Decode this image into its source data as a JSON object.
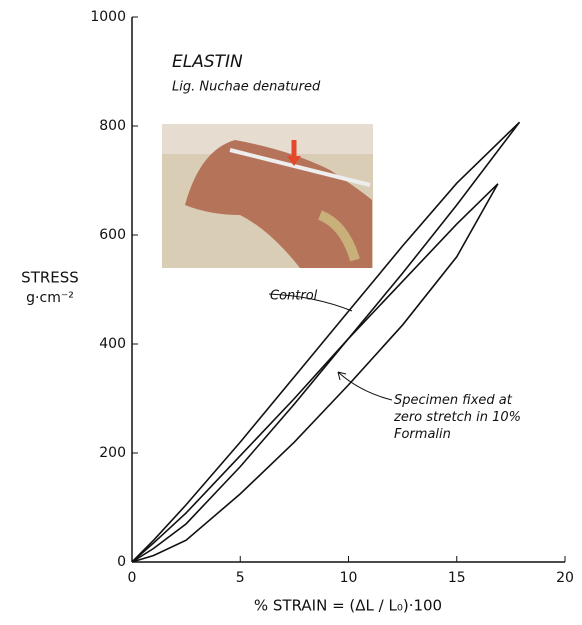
{
  "chart_data": {
    "type": "line",
    "title": "ELASTIN",
    "subtitle": "Lig. Nuchae denatured",
    "y_label": "STRESS",
    "y_unit": "g·cm⁻²",
    "x_label": "% STRAIN = (ΔL / L₀)·100",
    "xlim": [
      0,
      20
    ],
    "xticks": [
      0,
      5,
      10,
      15,
      20
    ],
    "ylim": [
      0,
      1000
    ],
    "yticks": [
      0,
      200,
      400,
      600,
      800,
      1000
    ],
    "series": [
      {
        "name": "Control",
        "color": "#111111",
        "x": [
          0,
          1,
          2.5,
          5,
          7.5,
          10,
          12.5,
          15,
          17.9,
          15,
          12.5,
          10,
          7.5,
          5,
          2.5,
          1,
          0
        ],
        "values": [
          0,
          40,
          105,
          220,
          340,
          460,
          580,
          695,
          807,
          655,
          530,
          410,
          290,
          175,
          70,
          25,
          0
        ]
      },
      {
        "name": "Specimen fixed at zero stretch in 10% Formalin",
        "color": "#111111",
        "x": [
          0,
          1,
          2.5,
          5,
          7.5,
          10,
          12.5,
          15,
          16.9,
          15,
          12.5,
          10,
          7.5,
          5,
          2.5,
          1,
          0
        ],
        "values": [
          0,
          35,
          90,
          195,
          300,
          410,
          515,
          620,
          694,
          560,
          435,
          325,
          220,
          125,
          40,
          12,
          0
        ]
      }
    ]
  }
}
